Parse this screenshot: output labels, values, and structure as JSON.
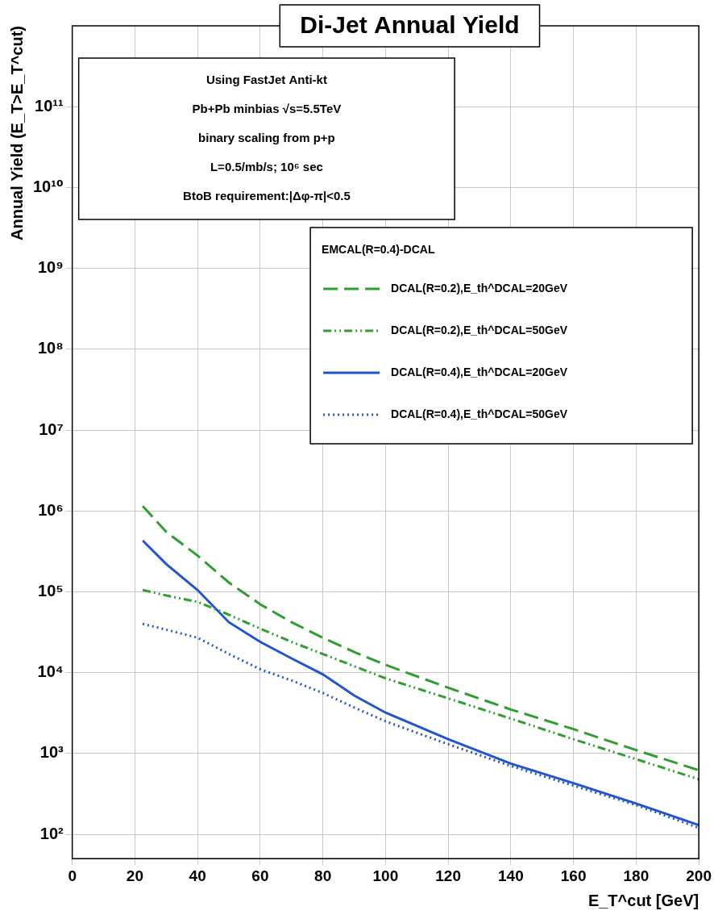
{
  "chart_data": {
    "type": "line",
    "title": "Di-Jet Annual Yield",
    "x_label": "E_T^cut [GeV]",
    "y_label": "Annual Yield (E_T>E_T^cut)",
    "annotations": [
      "Using FastJet Anti-kt",
      "Pb+Pb minbias √s=5.5TeV",
      "binary scaling from p+p",
      "L=0.5/mb/s; 10⁶ sec",
      "BtoB requirement:|Δφ-π|<0.5"
    ],
    "legend_title": "EMCAL(R=0.4)-DCAL",
    "x": [
      22.5,
      30,
      40,
      50,
      60,
      70,
      80,
      90,
      100,
      120,
      140,
      160,
      180,
      200
    ],
    "series": [
      {
        "name": "DCAL(R=0.2),E_th^DCAL=20GeV",
        "color": "#2e9e2e",
        "line_style": "dashed",
        "values": [
          1150000,
          550000,
          280000,
          130000,
          70000,
          42000,
          27000,
          18000,
          12500,
          6500,
          3500,
          2000,
          1100,
          620
        ]
      },
      {
        "name": "DCAL(R=0.2),E_th^DCAL=50GeV",
        "color": "#2e9e2e",
        "line_style": "dashdotdot",
        "values": [
          105000,
          90000,
          75000,
          52000,
          35000,
          24000,
          17000,
          12000,
          8500,
          4800,
          2700,
          1500,
          850,
          480
        ]
      },
      {
        "name": "DCAL(R=0.4),E_th^DCAL=20GeV",
        "color": "#2255cc",
        "line_style": "solid",
        "values": [
          430000,
          220000,
          105000,
          42000,
          24000,
          15000,
          9500,
          5200,
          3200,
          1500,
          750,
          430,
          240,
          130
        ]
      },
      {
        "name": "DCAL(R=0.4),E_th^DCAL=50GeV",
        "color": "#2255cc",
        "line_style": "dotted",
        "values": [
          40000,
          34000,
          27000,
          17000,
          11000,
          8000,
          5600,
          3700,
          2500,
          1300,
          700,
          400,
          230,
          120
        ]
      }
    ],
    "xlim": [
      0,
      200
    ],
    "xticks": [
      0,
      20,
      40,
      60,
      80,
      100,
      120,
      140,
      160,
      180,
      200
    ],
    "ylim": [
      50,
      1000000000000
    ],
    "yticks": [
      {
        "value": 100,
        "label": "10²"
      },
      {
        "value": 1000,
        "label": "10³"
      },
      {
        "value": 10000,
        "label": "10⁴"
      },
      {
        "value": 100000,
        "label": "10⁵"
      },
      {
        "value": 1000000,
        "label": "10⁶"
      },
      {
        "value": 10000000,
        "label": "10⁷"
      },
      {
        "value": 100000000,
        "label": "10⁸"
      },
      {
        "value": 1000000000,
        "label": "10⁹"
      },
      {
        "value": 10000000000,
        "label": "10¹⁰"
      },
      {
        "value": 100000000000,
        "label": "10¹¹"
      }
    ],
    "log": "y",
    "grid": true,
    "legend": "upper right"
  }
}
